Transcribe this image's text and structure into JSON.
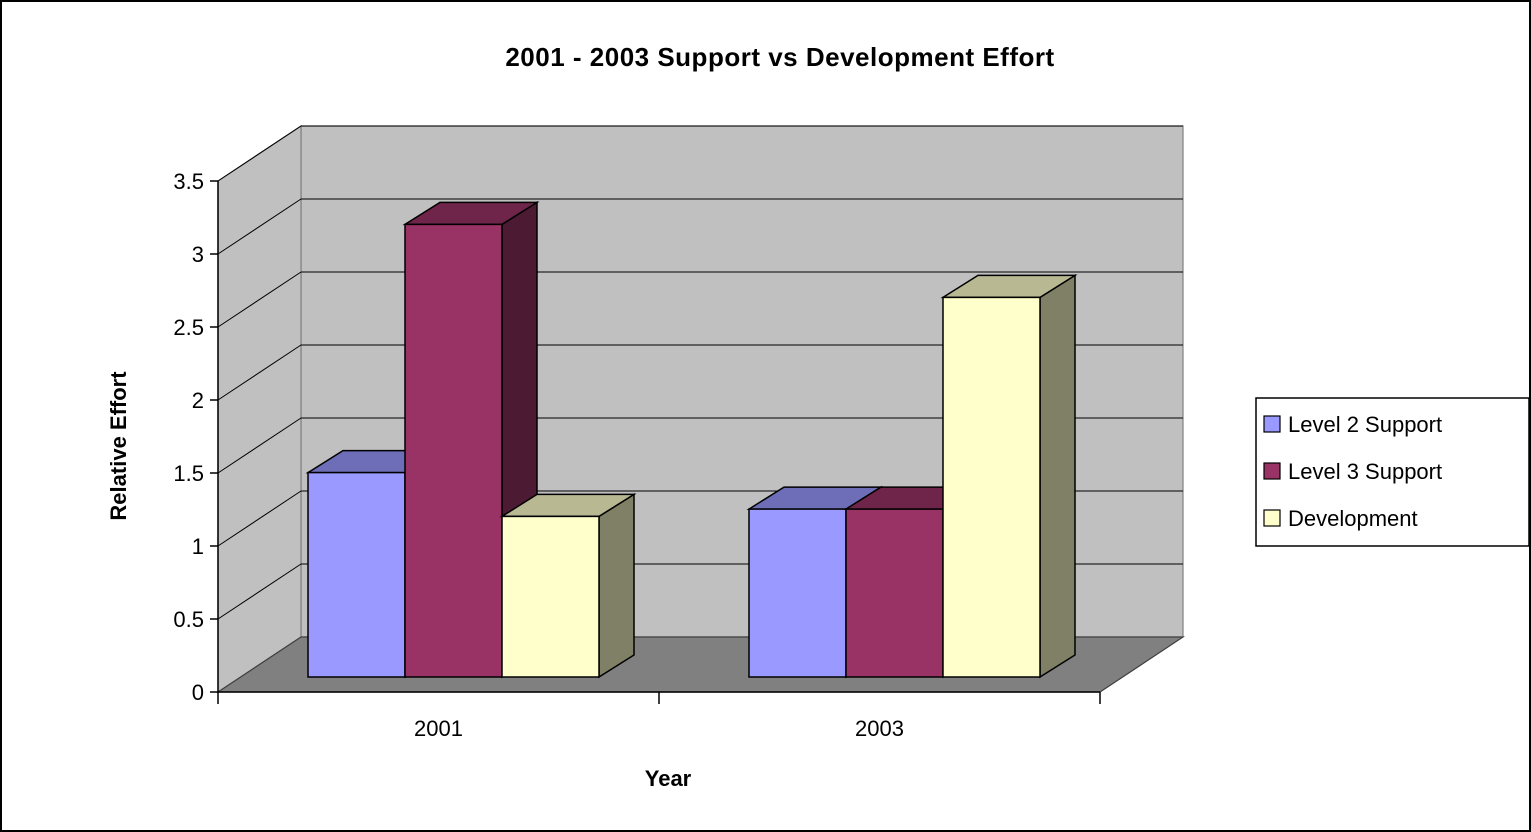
{
  "chart_data": {
    "type": "bar",
    "title": "2001 - 2003 Support vs Development Effort",
    "xlabel": "Year",
    "ylabel": "Relative Effort",
    "categories": [
      "2001",
      "2003"
    ],
    "ylim": [
      0,
      3.5
    ],
    "yticks": [
      "0",
      "0.5",
      "1",
      "1.5",
      "2",
      "2.5",
      "3",
      "3.5"
    ],
    "grid": true,
    "legend_position": "right",
    "style": "3d-clustered-column",
    "series": [
      {
        "name": "Level 2 Support",
        "values": [
          1.4,
          1.15
        ],
        "color": "#9999ff"
      },
      {
        "name": "Level 3 Support",
        "values": [
          3.1,
          1.15
        ],
        "color": "#993366"
      },
      {
        "name": "Development",
        "values": [
          1.1,
          2.6
        ],
        "color": "#ffffcc"
      }
    ],
    "wall_color": "#c0c0c0",
    "floor_color": "#808080"
  }
}
